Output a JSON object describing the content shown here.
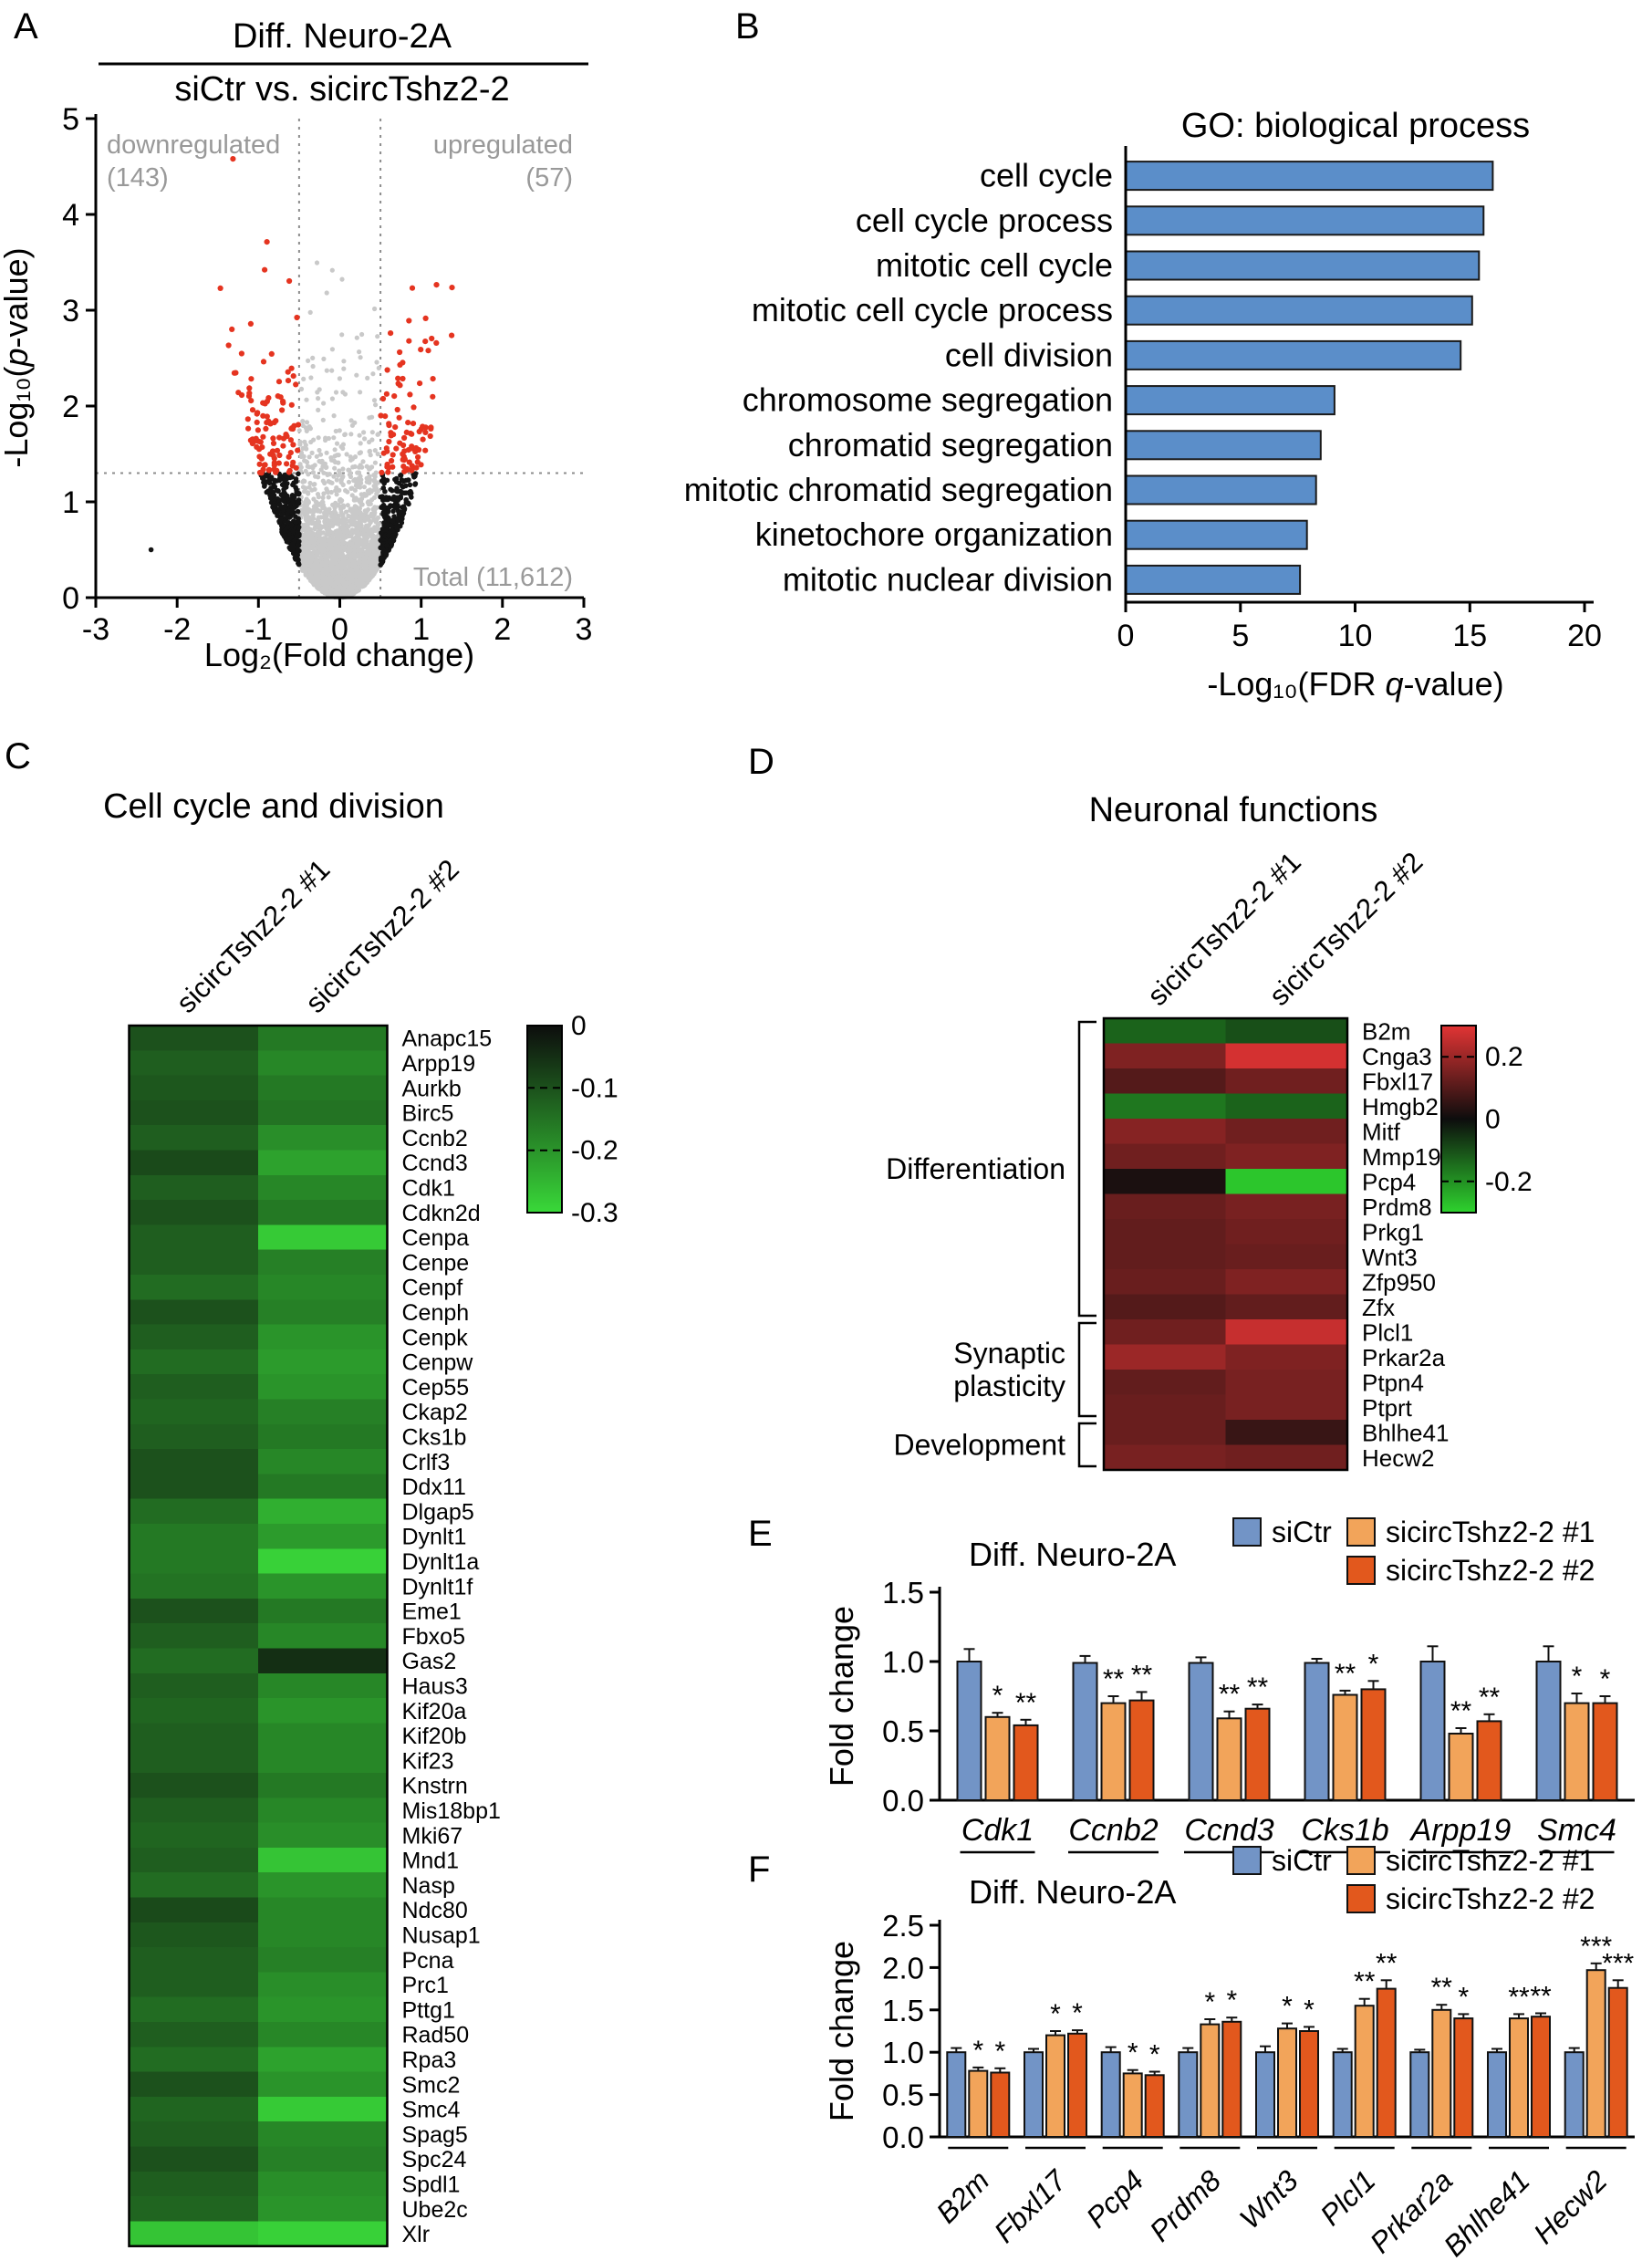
{
  "figure": {
    "background": "#ffffff"
  },
  "chart_data": [
    {
      "panel": "A",
      "type": "scatter",
      "subtype": "volcano",
      "title": "Diff. Neuro-2A",
      "subtitle": "siCtr vs. sicircTshz2-2",
      "xlabel": "Log₂(Fold change)",
      "ylabel": {
        "pre": "-Log₁₀(",
        "it": "p",
        "post": "-value)"
      },
      "xlim": [
        -3,
        3
      ],
      "ylim": [
        0,
        5
      ],
      "xticks": [
        -3,
        -2,
        -1,
        0,
        1,
        2,
        3
      ],
      "yticks": [
        0,
        1,
        2,
        3,
        4,
        5
      ],
      "thresholds": {
        "log2fc": 0.5,
        "neg_log10_p": 1.3
      },
      "down_label": "downregulated",
      "down_count": "(143)",
      "up_label": "upregulated",
      "up_count": "(57)",
      "total_label": "Total (11,612)",
      "counts": {
        "downregulated": 143,
        "upregulated": 57,
        "total": "11,612"
      },
      "point_colors": {
        "ns": "#c9c9c9",
        "fc_only": "#141414",
        "sig": "#e53420"
      },
      "sim": {
        "seed": 42,
        "n": 3200,
        "x_sigma": 0.42,
        "x_shift": -0.05,
        "curve": 1.35,
        "tail": 0.42
      },
      "extra_points": [
        {
          "x": -2.32,
          "y": 0.5,
          "c": "fc_only"
        }
      ]
    },
    {
      "panel": "B",
      "type": "bar",
      "orientation": "horizontal",
      "title": "GO: biological process",
      "xlabel": {
        "pre": "-Log₁₀(FDR ",
        "it": "q",
        "post": "-value)"
      },
      "categories": [
        "cell cycle",
        "cell cycle process",
        "mitotic cell cycle",
        "mitotic cell cycle process",
        "cell division",
        "chromosome segregation",
        "chromatid segregation",
        "mitotic chromatid segregation",
        "kinetochore organization",
        "mitotic nuclear division"
      ],
      "values": [
        16.0,
        15.6,
        15.4,
        15.1,
        14.6,
        9.1,
        8.5,
        8.3,
        7.9,
        7.6
      ],
      "xlim": [
        0,
        20
      ],
      "xticks": [
        0,
        5,
        10,
        15,
        20
      ],
      "bar_color": "#5b8ec9"
    },
    {
      "panel": "C",
      "type": "heatmap",
      "title": "Cell cycle and division",
      "columns": [
        "sicircTshz2-2 #1",
        "sicircTshz2-2 #2"
      ],
      "genes": [
        "Anapc15",
        "Arpp19",
        "Aurkb",
        "Birc5",
        "Ccnb2",
        "Ccnd3",
        "Cdk1",
        "Cdkn2d",
        "Cenpa",
        "Cenpe",
        "Cenpf",
        "Cenph",
        "Cenpk",
        "Cenpw",
        "Cep55",
        "Ckap2",
        "Cks1b",
        "Crlf3",
        "Ddx11",
        "Dlgap5",
        "Dynlt1",
        "Dynlt1a",
        "Dynlt1f",
        "Eme1",
        "Fbxo5",
        "Gas2",
        "Haus3",
        "Kif20a",
        "Kif20b",
        "Kif23",
        "Knstrn",
        "Mis18bp1",
        "Mki67",
        "Mnd1",
        "Nasp",
        "Ndc80",
        "Nusap1",
        "Pcna",
        "Prc1",
        "Pttg1",
        "Rad50",
        "Rpa3",
        "Smc2",
        "Smc4",
        "Spag5",
        "Spc24",
        "Spdl1",
        "Ube2c",
        "Xlr"
      ],
      "values": [
        [
          -0.1,
          -0.16
        ],
        [
          -0.12,
          -0.18
        ],
        [
          -0.11,
          -0.16
        ],
        [
          -0.1,
          -0.15
        ],
        [
          -0.12,
          -0.19
        ],
        [
          -0.09,
          -0.22
        ],
        [
          -0.12,
          -0.18
        ],
        [
          -0.1,
          -0.16
        ],
        [
          -0.12,
          -0.28
        ],
        [
          -0.12,
          -0.17
        ],
        [
          -0.14,
          -0.18
        ],
        [
          -0.1,
          -0.17
        ],
        [
          -0.12,
          -0.2
        ],
        [
          -0.14,
          -0.21
        ],
        [
          -0.12,
          -0.2
        ],
        [
          -0.13,
          -0.17
        ],
        [
          -0.12,
          -0.16
        ],
        [
          -0.1,
          -0.18
        ],
        [
          -0.1,
          -0.16
        ],
        [
          -0.14,
          -0.24
        ],
        [
          -0.16,
          -0.21
        ],
        [
          -0.16,
          -0.29
        ],
        [
          -0.15,
          -0.2
        ],
        [
          -0.1,
          -0.16
        ],
        [
          -0.12,
          -0.18
        ],
        [
          -0.14,
          -0.05
        ],
        [
          -0.12,
          -0.18
        ],
        [
          -0.13,
          -0.2
        ],
        [
          -0.12,
          -0.18
        ],
        [
          -0.12,
          -0.18
        ],
        [
          -0.1,
          -0.16
        ],
        [
          -0.12,
          -0.18
        ],
        [
          -0.13,
          -0.19
        ],
        [
          -0.12,
          -0.27
        ],
        [
          -0.14,
          -0.2
        ],
        [
          -0.09,
          -0.18
        ],
        [
          -0.11,
          -0.18
        ],
        [
          -0.12,
          -0.17
        ],
        [
          -0.12,
          -0.19
        ],
        [
          -0.14,
          -0.2
        ],
        [
          -0.12,
          -0.18
        ],
        [
          -0.14,
          -0.22
        ],
        [
          -0.1,
          -0.2
        ],
        [
          -0.13,
          -0.28
        ],
        [
          -0.12,
          -0.18
        ],
        [
          -0.1,
          -0.17
        ],
        [
          -0.12,
          -0.19
        ],
        [
          -0.13,
          -0.2
        ],
        [
          -0.27,
          -0.29
        ]
      ],
      "scale": {
        "min": -0.3,
        "zero": 0,
        "color_zero": "#0d0d0d",
        "color_neg": "#39d839",
        "legend": [
          {
            "label": "0",
            "v": 0,
            "dash": false
          },
          {
            "label": "-0.1",
            "v": -0.1,
            "dash": true
          },
          {
            "label": "-0.2",
            "v": -0.2,
            "dash": true
          },
          {
            "label": "-0.3",
            "v": -0.3,
            "dash": false
          }
        ]
      }
    },
    {
      "panel": "D",
      "type": "heatmap",
      "title": "Neuronal functions",
      "columns": [
        "sicircTshz2-2 #1",
        "sicircTshz2-2 #2"
      ],
      "genes": [
        "B2m",
        "Cnga3",
        "Fbxl17",
        "Hmgb2",
        "Mitf",
        "Mmp19",
        "Pcp4",
        "Prdm8",
        "Prkg1",
        "Wnt3",
        "Zfp950",
        "Zfx",
        "Plcl1",
        "Prkar2a",
        "Ptpn4",
        "Ptprt",
        "Bhlhe41",
        "Hecw2"
      ],
      "values": [
        [
          -0.13,
          -0.1
        ],
        [
          0.16,
          0.28
        ],
        [
          0.1,
          0.14
        ],
        [
          -0.16,
          -0.13
        ],
        [
          0.17,
          0.14
        ],
        [
          0.14,
          0.16
        ],
        [
          0.02,
          -0.28
        ],
        [
          0.13,
          0.15
        ],
        [
          0.12,
          0.14
        ],
        [
          0.12,
          0.13
        ],
        [
          0.13,
          0.16
        ],
        [
          0.1,
          0.12
        ],
        [
          0.14,
          0.26
        ],
        [
          0.2,
          0.16
        ],
        [
          0.12,
          0.15
        ],
        [
          0.13,
          0.15
        ],
        [
          0.13,
          0.06
        ],
        [
          0.15,
          0.14
        ]
      ],
      "groups": [
        {
          "label": "Differentiation",
          "lines": [
            "Differentiation"
          ],
          "start": 0,
          "end": 11
        },
        {
          "label": "Synaptic plasticity",
          "lines": [
            "Synaptic",
            "plasticity"
          ],
          "start": 12,
          "end": 15
        },
        {
          "label": "Development",
          "lines": [
            "Development"
          ],
          "start": 16,
          "end": 17
        }
      ],
      "scale": {
        "absmax": 0.3,
        "color_pos": "#e23434",
        "color_zero": "#0d0d0d",
        "color_neg": "#2ed32e",
        "legend": [
          {
            "label": "0.2",
            "v": 0.2,
            "dash": true
          },
          {
            "label": "0",
            "v": 0,
            "dash": false
          },
          {
            "label": "-0.2",
            "v": -0.2,
            "dash": true
          }
        ]
      }
    },
    {
      "panel": "E",
      "type": "bar",
      "subtype": "grouped",
      "title": "Diff. Neuro-2A",
      "ylabel": "Fold change",
      "ylim": [
        0,
        1.5
      ],
      "yticks": [
        "0.0",
        "0.5",
        "1.0",
        "1.5"
      ],
      "legend": [
        {
          "label": "siCtr",
          "color": "#7294c6"
        },
        {
          "label": "sicircTshz2-2 #1",
          "color": "#f2a45a"
        },
        {
          "label": "sicircTshz2-2 #2",
          "color": "#e2581d"
        }
      ],
      "categories": [
        "Cdk1",
        "Ccnb2",
        "Ccnd3",
        "Cks1b",
        "Arpp19",
        "Smc4"
      ],
      "series": [
        {
          "name": "siCtr",
          "values": [
            1.0,
            0.99,
            0.99,
            0.99,
            1.0,
            1.0
          ],
          "errors": [
            0.09,
            0.05,
            0.04,
            0.03,
            0.11,
            0.11
          ]
        },
        {
          "name": "sicircTshz2-2 #1",
          "values": [
            0.6,
            0.7,
            0.59,
            0.76,
            0.48,
            0.7
          ],
          "errors": [
            0.03,
            0.05,
            0.05,
            0.03,
            0.04,
            0.07
          ],
          "stars": [
            "*",
            "**",
            "**",
            "**",
            "**",
            "*"
          ]
        },
        {
          "name": "sicircTshz2-2 #2",
          "values": [
            0.54,
            0.72,
            0.66,
            0.8,
            0.57,
            0.7
          ],
          "errors": [
            0.04,
            0.06,
            0.03,
            0.06,
            0.05,
            0.05
          ],
          "stars": [
            "**",
            "**",
            "**",
            "*",
            "**",
            "*"
          ]
        }
      ]
    },
    {
      "panel": "F",
      "type": "bar",
      "subtype": "grouped",
      "title": "Diff. Neuro-2A",
      "ylabel": "Fold change",
      "ylim": [
        0,
        2.5
      ],
      "yticks": [
        "0.0",
        "0.5",
        "1.0",
        "1.5",
        "2.0",
        "2.5"
      ],
      "legend": [
        {
          "label": "siCtr",
          "color": "#7294c6"
        },
        {
          "label": "sicircTshz2-2 #1",
          "color": "#f2a45a"
        },
        {
          "label": "sicircTshz2-2 #2",
          "color": "#e2581d"
        }
      ],
      "categories": [
        "B2m",
        "Fbxl17",
        "Pcp4",
        "Prdm8",
        "Wnt3",
        "Plcl1",
        "Prkar2a",
        "Bhlhe41",
        "Hecw2"
      ],
      "series": [
        {
          "name": "siCtr",
          "values": [
            1.0,
            1.0,
            1.0,
            1.0,
            1.0,
            1.0,
            1.0,
            1.0,
            1.0
          ],
          "errors": [
            0.05,
            0.04,
            0.06,
            0.05,
            0.07,
            0.04,
            0.03,
            0.04,
            0.05
          ]
        },
        {
          "name": "sicircTshz2-2 #1",
          "values": [
            0.78,
            1.2,
            0.75,
            1.33,
            1.28,
            1.55,
            1.5,
            1.4,
            1.97
          ],
          "errors": [
            0.04,
            0.05,
            0.04,
            0.06,
            0.06,
            0.08,
            0.06,
            0.05,
            0.08
          ],
          "stars": [
            "*",
            "*",
            "*",
            "*",
            "*",
            "**",
            "**",
            "**",
            "***"
          ]
        },
        {
          "name": "sicircTshz2-2 #2",
          "values": [
            0.76,
            1.22,
            0.73,
            1.36,
            1.25,
            1.75,
            1.4,
            1.42,
            1.76
          ],
          "errors": [
            0.05,
            0.04,
            0.04,
            0.05,
            0.05,
            0.1,
            0.05,
            0.04,
            0.09
          ],
          "stars": [
            "*",
            "*",
            "*",
            "*",
            "*",
            "**",
            "*",
            "**",
            "***"
          ]
        }
      ]
    }
  ]
}
